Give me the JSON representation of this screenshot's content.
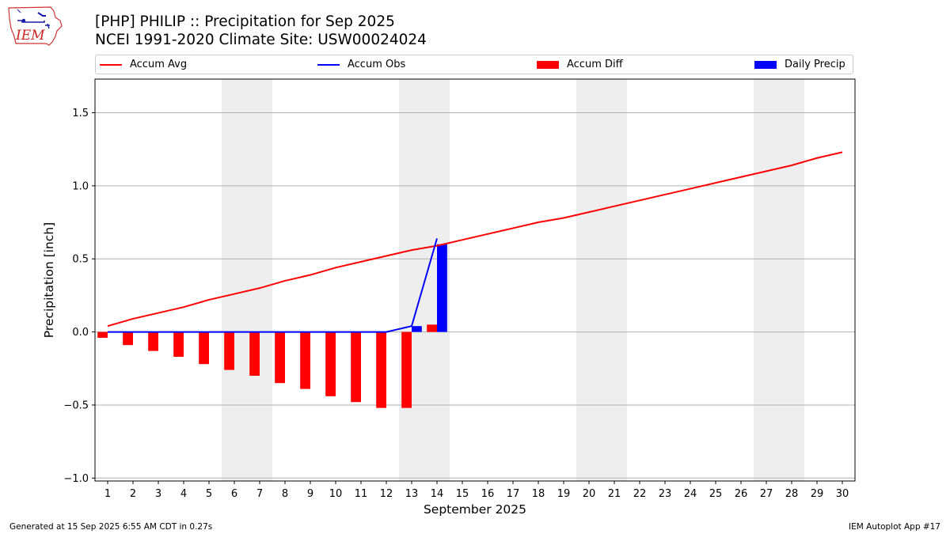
{
  "header": {
    "title": "[PHP] PHILIP :: Precipitation for Sep 2025",
    "subtitle": "NCEI 1991-2020 Climate Site: USW00024024"
  },
  "logo": {
    "text": "IEM",
    "icon": "iowa-state-outline-logo"
  },
  "footer": {
    "left": "Generated at 15 Sep 2025 6:55 AM CDT in 0.27s",
    "right": "IEM Autoplot App #17"
  },
  "colors": {
    "avg": "#ff0000",
    "obs": "#0000ff",
    "diff": "#ff0000",
    "daily": "#0000ff",
    "weekend_band": "#eeeeee",
    "grid": "#b0b0b0"
  },
  "chart_data": {
    "type": "line",
    "xlabel": "September 2025",
    "ylabel": "Precipitation [inch]",
    "ylim": [
      -1.02,
      1.73
    ],
    "xlim": [
      0.5,
      30.5
    ],
    "yticks": [
      -1.0,
      -0.5,
      0.0,
      0.5,
      1.0,
      1.5
    ],
    "ytick_labels": [
      "−1.0",
      "−0.5",
      "0.0",
      "0.5",
      "1.0",
      "1.5"
    ],
    "categories": [
      "1",
      "2",
      "3",
      "4",
      "5",
      "6",
      "7",
      "8",
      "9",
      "10",
      "11",
      "12",
      "13",
      "14",
      "15",
      "16",
      "17",
      "18",
      "19",
      "20",
      "21",
      "22",
      "23",
      "24",
      "25",
      "26",
      "27",
      "28",
      "29",
      "30"
    ],
    "grid": "horizontal",
    "legend_placement": "top",
    "weekend_bands": [
      [
        6,
        7
      ],
      [
        13,
        14
      ],
      [
        20,
        21
      ],
      [
        27,
        28
      ]
    ],
    "series": [
      {
        "name": "Accum Avg",
        "kind": "line",
        "x": [
          1,
          2,
          3,
          4,
          5,
          6,
          7,
          8,
          9,
          10,
          11,
          12,
          13,
          14,
          15,
          16,
          17,
          18,
          19,
          20,
          21,
          22,
          23,
          24,
          25,
          26,
          27,
          28,
          29,
          30
        ],
        "values": [
          0.04,
          0.09,
          0.13,
          0.17,
          0.22,
          0.26,
          0.3,
          0.35,
          0.39,
          0.44,
          0.48,
          0.52,
          0.56,
          0.59,
          0.63,
          0.67,
          0.71,
          0.75,
          0.78,
          0.82,
          0.86,
          0.9,
          0.94,
          0.98,
          1.02,
          1.06,
          1.1,
          1.14,
          1.19,
          1.23
        ]
      },
      {
        "name": "Accum Obs",
        "kind": "line",
        "x": [
          1,
          2,
          3,
          4,
          5,
          6,
          7,
          8,
          9,
          10,
          11,
          12,
          13,
          14
        ],
        "values": [
          0,
          0,
          0,
          0,
          0,
          0,
          0,
          0,
          0,
          0,
          0,
          0,
          0.04,
          0.64
        ]
      },
      {
        "name": "Accum Diff",
        "kind": "bar",
        "x": [
          1,
          2,
          3,
          4,
          5,
          6,
          7,
          8,
          9,
          10,
          11,
          12,
          13,
          14
        ],
        "values": [
          -0.04,
          -0.09,
          -0.13,
          -0.17,
          -0.22,
          -0.26,
          -0.3,
          -0.35,
          -0.39,
          -0.44,
          -0.48,
          -0.52,
          -0.52,
          0.05
        ]
      },
      {
        "name": "Daily Precip",
        "kind": "bar",
        "x": [
          13,
          14
        ],
        "values": [
          0.04,
          0.6
        ]
      }
    ]
  }
}
